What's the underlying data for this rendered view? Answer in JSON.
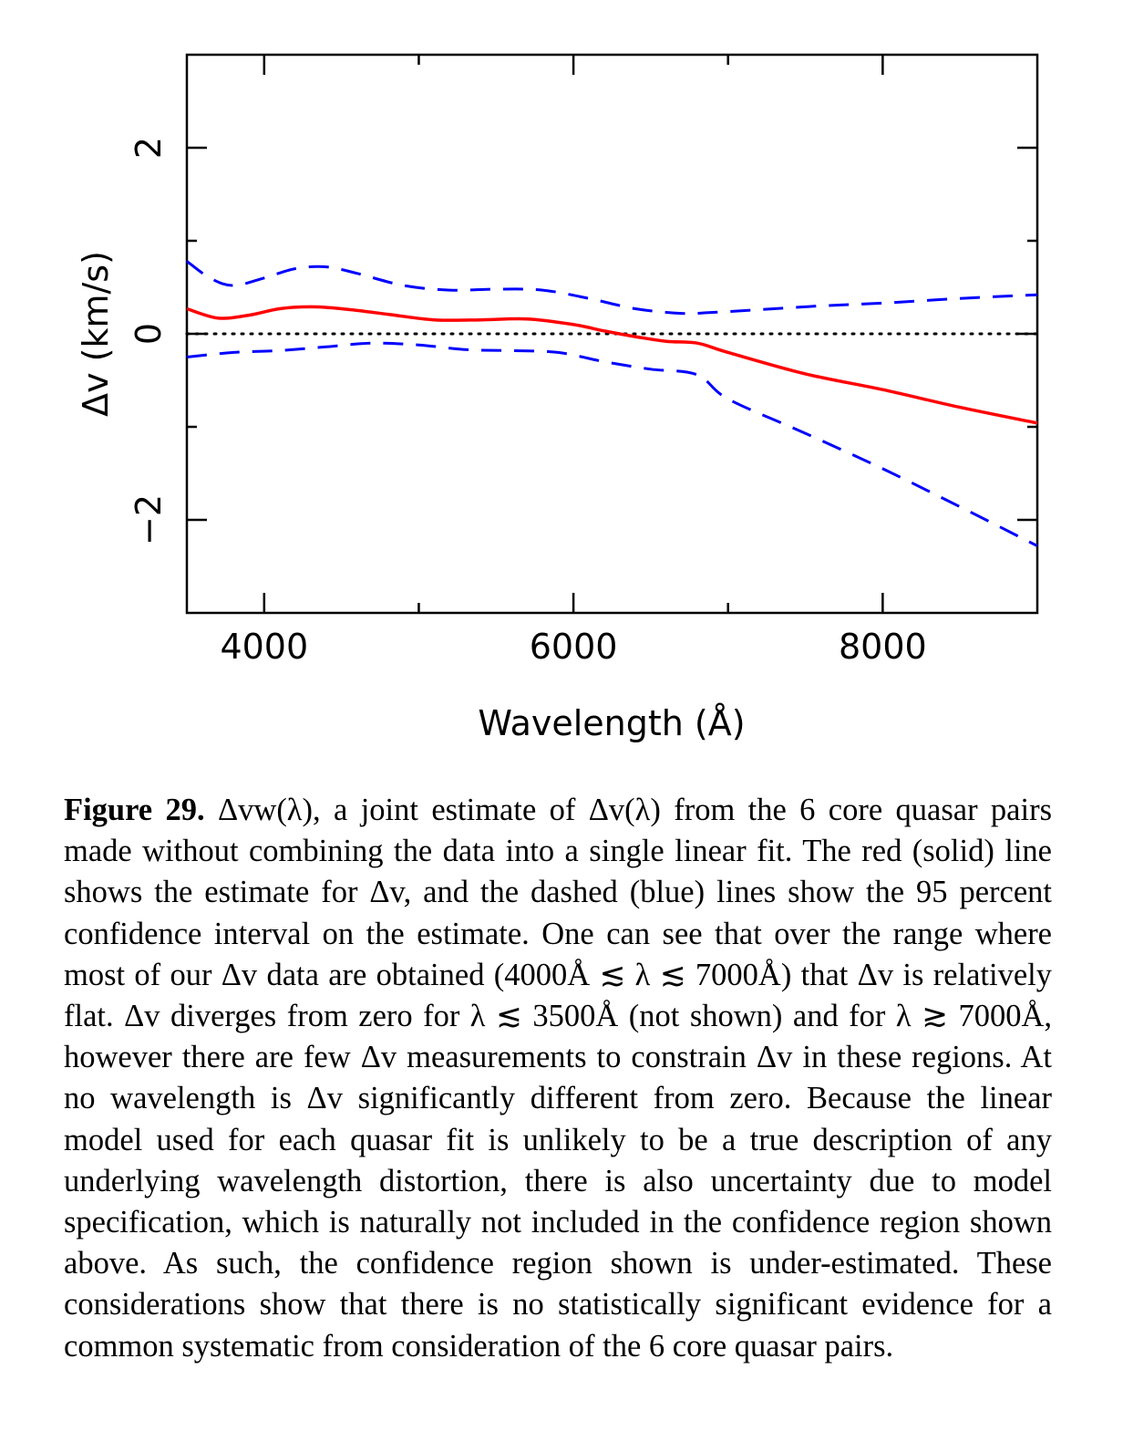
{
  "chart_data": {
    "type": "line",
    "xlabel": "Wavelength (Å)",
    "ylabel": "Δv (km/s)",
    "xlim": [
      3500,
      9000
    ],
    "ylim": [
      -3,
      3
    ],
    "x_ticks": [
      4000,
      6000,
      8000
    ],
    "y_ticks": [
      -2,
      0,
      2
    ],
    "x_tick_labels": [
      "4000",
      "6000",
      "8000"
    ],
    "y_tick_labels": [
      "−2",
      "0",
      "2"
    ],
    "grid": false,
    "legend": "none",
    "reference_line": {
      "y": 0,
      "style": "dotted",
      "color": "#000000"
    },
    "series": [
      {
        "style": "solid",
        "color": "#ff0000",
        "x": [
          3500,
          3700,
          3900,
          4100,
          4300,
          4500,
          4800,
          5100,
          5400,
          5700,
          6000,
          6200,
          6400,
          6600,
          6800,
          7000,
          7500,
          8000,
          8500,
          9000
        ],
        "y": [
          0.27,
          0.17,
          0.2,
          0.27,
          0.29,
          0.27,
          0.21,
          0.15,
          0.15,
          0.16,
          0.1,
          0.03,
          -0.03,
          -0.08,
          -0.1,
          -0.2,
          -0.43,
          -0.6,
          -0.79,
          -0.96
        ]
      },
      {
        "style": "dashed",
        "color": "#0000ff",
        "x": [
          3500,
          3650,
          3800,
          4000,
          4200,
          4400,
          4600,
          4900,
          5200,
          5500,
          5800,
          6100,
          6400,
          6700,
          6900,
          7200,
          7600,
          8000,
          8500,
          9000
        ],
        "y": [
          0.78,
          0.6,
          0.52,
          0.6,
          0.7,
          0.72,
          0.65,
          0.52,
          0.47,
          0.48,
          0.47,
          0.38,
          0.27,
          0.22,
          0.23,
          0.26,
          0.3,
          0.33,
          0.38,
          0.42
        ]
      },
      {
        "style": "dashed",
        "color": "#0000ff",
        "x": [
          3500,
          3800,
          4100,
          4400,
          4700,
          5000,
          5300,
          5600,
          5900,
          6200,
          6500,
          6800,
          7000,
          7500,
          8000,
          8500,
          9000
        ],
        "y": [
          -0.25,
          -0.2,
          -0.18,
          -0.14,
          -0.1,
          -0.12,
          -0.17,
          -0.18,
          -0.2,
          -0.3,
          -0.38,
          -0.44,
          -0.7,
          -1.07,
          -1.45,
          -1.86,
          -2.28
        ]
      }
    ]
  },
  "caption": {
    "figure_label": "Figure 29.",
    "text": "Δvw(λ), a joint estimate of Δv(λ) from the 6 core quasar pairs made without combining the data into a single linear fit. The red (solid) line shows the estimate for Δv, and the dashed (blue) lines show the 95 percent confidence interval on the estimate. One can see that over the range where most of our Δv data are obtained (4000Å ≲ λ ≲ 7000Å) that Δv is relatively flat. Δv diverges from zero for λ ≲ 3500Å (not shown) and for λ ≳ 7000Å, however there are few Δv measurements to constrain Δv in these regions. At no wavelength is Δv significantly different from zero. Because the linear model used for each quasar fit is unlikely to be a true description of any underlying wavelength distortion, there is also uncertainty due to model specification, which is naturally not included in the confidence region shown above. As such, the confidence region shown is under-estimated. These considerations show that there is no statistically significant evidence for a common systematic from consideration of the 6 core quasar pairs."
  }
}
